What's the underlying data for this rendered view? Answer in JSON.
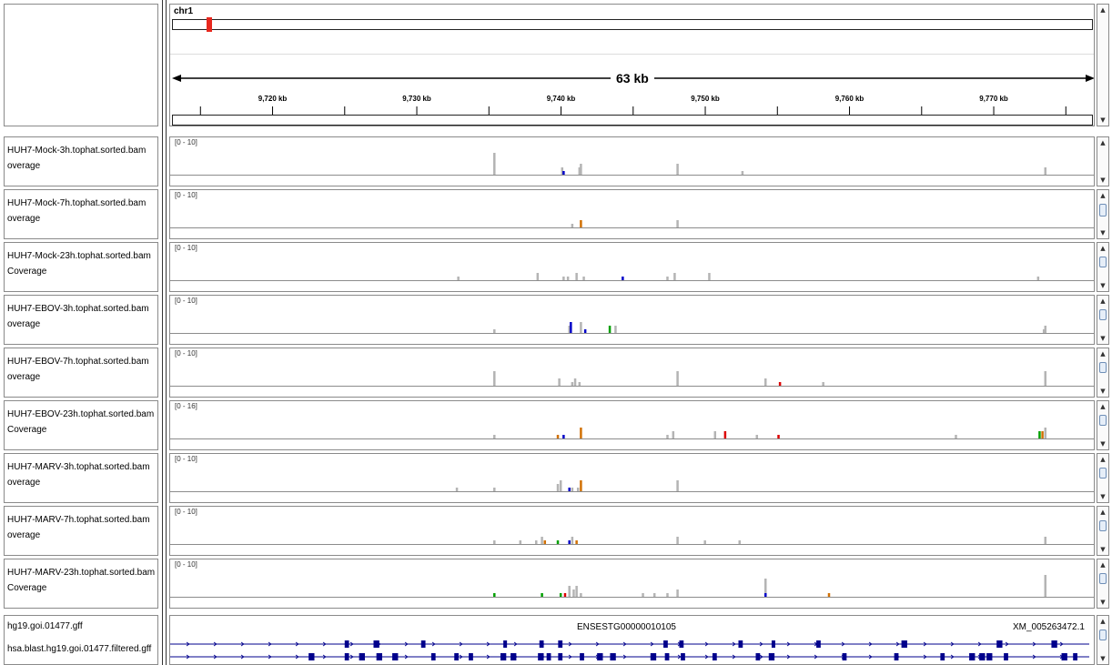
{
  "header": {
    "chromosome": "chr1",
    "span_label": "63 kb",
    "ticks": [
      "9,720 kb",
      "9,730 kb",
      "9,740 kb",
      "9,750 kb",
      "9,760 kb",
      "9,770 kb"
    ]
  },
  "tracks": [
    {
      "name": "HUH7-Mock-3h.tophat.sorted.bam",
      "sub": "overage",
      "range": "[0 - 10]"
    },
    {
      "name": "HUH7-Mock-7h.tophat.sorted.bam",
      "sub": "overage",
      "range": "[0 - 10]"
    },
    {
      "name": "HUH7-Mock-23h.tophat.sorted.bam",
      "sub": "Coverage",
      "range": "[0 - 10]"
    },
    {
      "name": "HUH7-EBOV-3h.tophat.sorted.bam",
      "sub": "overage",
      "range": "[0 - 10]"
    },
    {
      "name": "HUH7-EBOV-7h.tophat.sorted.bam",
      "sub": "overage",
      "range": "[0 - 10]"
    },
    {
      "name": "HUH7-EBOV-23h.tophat.sorted.bam",
      "sub": "Coverage",
      "range": "[0 - 16]"
    },
    {
      "name": "HUH7-MARV-3h.tophat.sorted.bam",
      "sub": "overage",
      "range": "[0 - 10]"
    },
    {
      "name": "HUH7-MARV-7h.tophat.sorted.bam",
      "sub": "overage",
      "range": "[0 - 10]"
    },
    {
      "name": "HUH7-MARV-23h.tophat.sorted.bam",
      "sub": "Coverage",
      "range": "[0 - 10]"
    }
  ],
  "annotation": {
    "track1": "hg19.goi.01477.gff",
    "track2": "hsa.blast.hg19.goi.01477.filtered.gff",
    "gene1": "ENSESTG00000010105",
    "gene2": "XM_005263472.1"
  },
  "colors": {
    "coverage": "#b4b4b4",
    "feature": "#00008c",
    "mismatch_a": "#00a000",
    "mismatch_c": "#0000c8",
    "mismatch_g": "#d17105",
    "mismatch_t": "#dc0000",
    "locator": "#e8281e"
  },
  "coverage_bars": [
    [
      [
        9735.3,
        6
      ],
      [
        9740.0,
        2
      ],
      [
        9740.1,
        1,
        "c"
      ],
      [
        9741.2,
        2
      ],
      [
        9741.3,
        3
      ],
      [
        9748.0,
        3
      ],
      [
        9752.5,
        1
      ],
      [
        9773.5,
        2
      ]
    ],
    [
      [
        9740.7,
        1
      ],
      [
        9741.3,
        2,
        "g"
      ],
      [
        9748.0,
        2
      ]
    ],
    [
      [
        9732.8,
        1
      ],
      [
        9738.3,
        2
      ],
      [
        9740.1,
        1
      ],
      [
        9740.4,
        1
      ],
      [
        9741.0,
        2
      ],
      [
        9741.5,
        1
      ],
      [
        9744.2,
        1,
        "c"
      ],
      [
        9747.3,
        1
      ],
      [
        9747.8,
        2
      ],
      [
        9750.2,
        2
      ],
      [
        9773.0,
        1
      ]
    ],
    [
      [
        9735.3,
        1
      ],
      [
        9740.5,
        2
      ],
      [
        9740.6,
        3,
        "c"
      ],
      [
        9741.3,
        3
      ],
      [
        9741.6,
        1,
        "c"
      ],
      [
        9743.3,
        2,
        "a"
      ],
      [
        9743.7,
        2
      ],
      [
        9773.4,
        1
      ],
      [
        9773.5,
        2
      ]
    ],
    [
      [
        9735.3,
        4
      ],
      [
        9739.8,
        2
      ],
      [
        9740.7,
        1
      ],
      [
        9740.9,
        2
      ],
      [
        9741.2,
        1
      ],
      [
        9748.0,
        4
      ],
      [
        9754.1,
        2
      ],
      [
        9755.1,
        1,
        "t"
      ],
      [
        9758.1,
        1
      ],
      [
        9773.5,
        4
      ]
    ],
    [
      [
        9735.3,
        1
      ],
      [
        9739.7,
        1,
        "g"
      ],
      [
        9740.1,
        1,
        "c"
      ],
      [
        9741.3,
        3,
        "g"
      ],
      [
        9747.3,
        1
      ],
      [
        9747.7,
        2
      ],
      [
        9750.6,
        2
      ],
      [
        9751.3,
        2,
        "t"
      ],
      [
        9753.5,
        1
      ],
      [
        9755.0,
        1,
        "t"
      ],
      [
        9767.3,
        1
      ],
      [
        9773.1,
        2,
        "a"
      ],
      [
        9773.3,
        2,
        "g"
      ],
      [
        9773.5,
        3
      ],
      [
        9778.6,
        1
      ]
    ],
    [
      [
        9732.7,
        1
      ],
      [
        9735.3,
        1
      ],
      [
        9739.7,
        2
      ],
      [
        9739.9,
        3
      ],
      [
        9740.5,
        1,
        "c"
      ],
      [
        9740.7,
        1
      ],
      [
        9741.1,
        1
      ],
      [
        9741.3,
        3,
        "g"
      ],
      [
        9748.0,
        3
      ],
      [
        9778.6,
        1
      ]
    ],
    [
      [
        9735.3,
        1
      ],
      [
        9737.1,
        1
      ],
      [
        9738.2,
        1
      ],
      [
        9738.6,
        2
      ],
      [
        9738.8,
        1,
        "g"
      ],
      [
        9739.7,
        1,
        "a"
      ],
      [
        9740.5,
        1,
        "c"
      ],
      [
        9740.7,
        2
      ],
      [
        9741.0,
        1,
        "g"
      ],
      [
        9748.0,
        2
      ],
      [
        9749.9,
        1
      ],
      [
        9752.3,
        1
      ],
      [
        9773.5,
        2
      ],
      [
        9777.6,
        1
      ],
      [
        9778.1,
        1
      ]
    ],
    [
      [
        9735.3,
        1,
        "a"
      ],
      [
        9738.6,
        1,
        "a"
      ],
      [
        9739.9,
        1,
        "a"
      ],
      [
        9740.2,
        1,
        "t"
      ],
      [
        9740.5,
        3
      ],
      [
        9740.8,
        2
      ],
      [
        9741.0,
        3
      ],
      [
        9741.3,
        1
      ],
      [
        9745.6,
        1
      ],
      [
        9746.4,
        1
      ],
      [
        9747.3,
        1
      ],
      [
        9748.0,
        2
      ],
      [
        9754.1,
        5
      ],
      [
        9754.1,
        1,
        "c"
      ],
      [
        9758.5,
        1,
        "g"
      ],
      [
        9773.5,
        6
      ],
      [
        9777.6,
        1
      ],
      [
        9778.4,
        1
      ]
    ]
  ],
  "annotation_features": {
    "row1": [
      [
        9725.0,
        9725.3
      ],
      [
        9727.0,
        9727.4
      ],
      [
        9730.3,
        9730.6
      ],
      [
        9736.0,
        9736.2
      ],
      [
        9738.5,
        9738.8
      ],
      [
        9739.8,
        9740.1
      ],
      [
        9747.1,
        9747.4
      ],
      [
        9748.2,
        9748.5
      ],
      [
        9752.3,
        9752.6
      ],
      [
        9754.6,
        9754.8
      ],
      [
        9757.7,
        9758.0
      ],
      [
        9763.6,
        9764.0
      ],
      [
        9770.2,
        9770.6
      ],
      [
        9774.0,
        9774.4
      ],
      [
        9778.7,
        9779.0
      ]
    ],
    "row2": [
      [
        9722.5,
        9722.9
      ],
      [
        9725.0,
        9725.3
      ],
      [
        9726.0,
        9726.4
      ],
      [
        9727.2,
        9727.6
      ],
      [
        9728.3,
        9728.7
      ],
      [
        9731.0,
        9731.3
      ],
      [
        9732.6,
        9732.9
      ],
      [
        9733.6,
        9733.9
      ],
      [
        9735.8,
        9736.2
      ],
      [
        9736.5,
        9736.9
      ],
      [
        9738.4,
        9738.8
      ],
      [
        9739.0,
        9739.3
      ],
      [
        9739.8,
        9740.1
      ],
      [
        9741.3,
        9741.6
      ],
      [
        9742.5,
        9742.9
      ],
      [
        9743.4,
        9743.8
      ],
      [
        9746.2,
        9746.6
      ],
      [
        9747.2,
        9747.5
      ],
      [
        9748.3,
        9748.6
      ],
      [
        9750.5,
        9750.8
      ],
      [
        9753.5,
        9753.8
      ],
      [
        9754.4,
        9754.8
      ],
      [
        9759.5,
        9759.8
      ],
      [
        9763.1,
        9763.4
      ],
      [
        9766.3,
        9766.6
      ],
      [
        9768.3,
        9768.7
      ],
      [
        9769.0,
        9769.4
      ],
      [
        9769.5,
        9769.9
      ],
      [
        9770.7,
        9771.0
      ],
      [
        9774.7,
        9775.1
      ],
      [
        9775.5,
        9775.8
      ],
      [
        9777.2,
        9777.7
      ],
      [
        9777.9,
        9778.3
      ],
      [
        9779.3,
        9779.6
      ],
      [
        9780.4,
        9780.8
      ]
    ]
  }
}
